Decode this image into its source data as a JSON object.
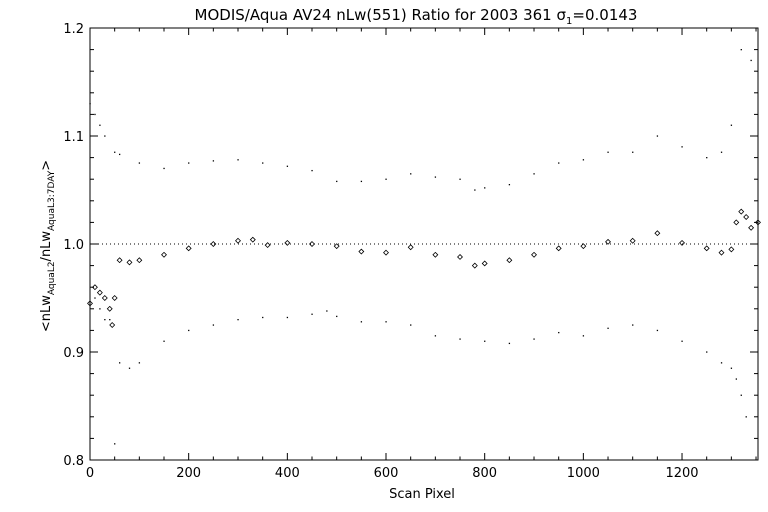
{
  "chart_data": {
    "type": "scatter",
    "title": "MODIS/Aqua AV24 nLw(551) Ratio for 2003 361 σ",
    "title_sub": "1",
    "title_tail": "=0.0143",
    "xlabel": "Scan Pixel",
    "ylabel_parts": {
      "open": "<nLw",
      "sub1": "AquaL2",
      "mid": "/nLw",
      "sub2": "AquaL3:7DAY",
      "close": ">"
    },
    "xlim": [
      0,
      1354
    ],
    "ylim": [
      0.8,
      1.2
    ],
    "x_ticks": [
      "0",
      "200",
      "400",
      "600",
      "800",
      "1000",
      "1200"
    ],
    "y_ticks": [
      "0.8",
      "0.9",
      "1.0",
      "1.1",
      "1.2"
    ],
    "reference_line": 1.0,
    "grid": false,
    "series": [
      {
        "role": "mean-ratio",
        "marker": "diamond",
        "x": [
          0,
          10,
          20,
          30,
          40,
          45,
          50,
          60,
          80,
          100,
          150,
          200,
          250,
          300,
          330,
          360,
          400,
          450,
          500,
          550,
          600,
          650,
          700,
          750,
          780,
          800,
          850,
          900,
          950,
          1000,
          1050,
          1100,
          1150,
          1200,
          1250,
          1280,
          1300,
          1310,
          1320,
          1330,
          1340,
          1354
        ],
        "y": [
          0.945,
          0.96,
          0.955,
          0.95,
          0.94,
          0.925,
          0.95,
          0.985,
          0.983,
          0.985,
          0.99,
          0.996,
          1.0,
          1.003,
          1.004,
          0.999,
          1.001,
          1.0,
          0.998,
          0.993,
          0.992,
          0.997,
          0.99,
          0.988,
          0.98,
          0.982,
          0.985,
          0.99,
          0.996,
          0.998,
          1.002,
          1.003,
          1.01,
          1.001,
          0.996,
          0.992,
          0.995,
          1.02,
          1.03,
          1.025,
          1.015,
          1.02
        ]
      },
      {
        "role": "upper-bound",
        "marker": "dot",
        "x": [
          0,
          10,
          20,
          30,
          50,
          60,
          100,
          150,
          200,
          250,
          300,
          350,
          400,
          450,
          500,
          550,
          600,
          650,
          700,
          750,
          780,
          800,
          850,
          900,
          950,
          1000,
          1050,
          1100,
          1150,
          1200,
          1250,
          1280,
          1300,
          1320,
          1340
        ],
        "y": [
          1.13,
          1.12,
          1.11,
          1.1,
          1.085,
          1.083,
          1.075,
          1.07,
          1.075,
          1.077,
          1.078,
          1.075,
          1.072,
          1.068,
          1.058,
          1.058,
          1.06,
          1.065,
          1.062,
          1.06,
          1.05,
          1.052,
          1.055,
          1.065,
          1.075,
          1.078,
          1.085,
          1.085,
          1.1,
          1.09,
          1.08,
          1.085,
          1.11,
          1.18,
          1.17
        ]
      },
      {
        "role": "lower-bound",
        "marker": "dot",
        "x": [
          10,
          20,
          30,
          40,
          50,
          60,
          80,
          100,
          150,
          200,
          250,
          300,
          350,
          400,
          450,
          480,
          500,
          550,
          600,
          650,
          700,
          750,
          800,
          850,
          900,
          950,
          1000,
          1050,
          1100,
          1150,
          1200,
          1250,
          1280,
          1300,
          1310,
          1320,
          1330
        ],
        "y": [
          0.95,
          0.94,
          0.93,
          0.93,
          0.815,
          0.89,
          0.885,
          0.89,
          0.91,
          0.92,
          0.925,
          0.93,
          0.932,
          0.932,
          0.935,
          0.938,
          0.933,
          0.928,
          0.928,
          0.925,
          0.915,
          0.912,
          0.91,
          0.908,
          0.912,
          0.918,
          0.915,
          0.922,
          0.925,
          0.92,
          0.91,
          0.9,
          0.89,
          0.885,
          0.875,
          0.86,
          0.84
        ]
      }
    ]
  }
}
